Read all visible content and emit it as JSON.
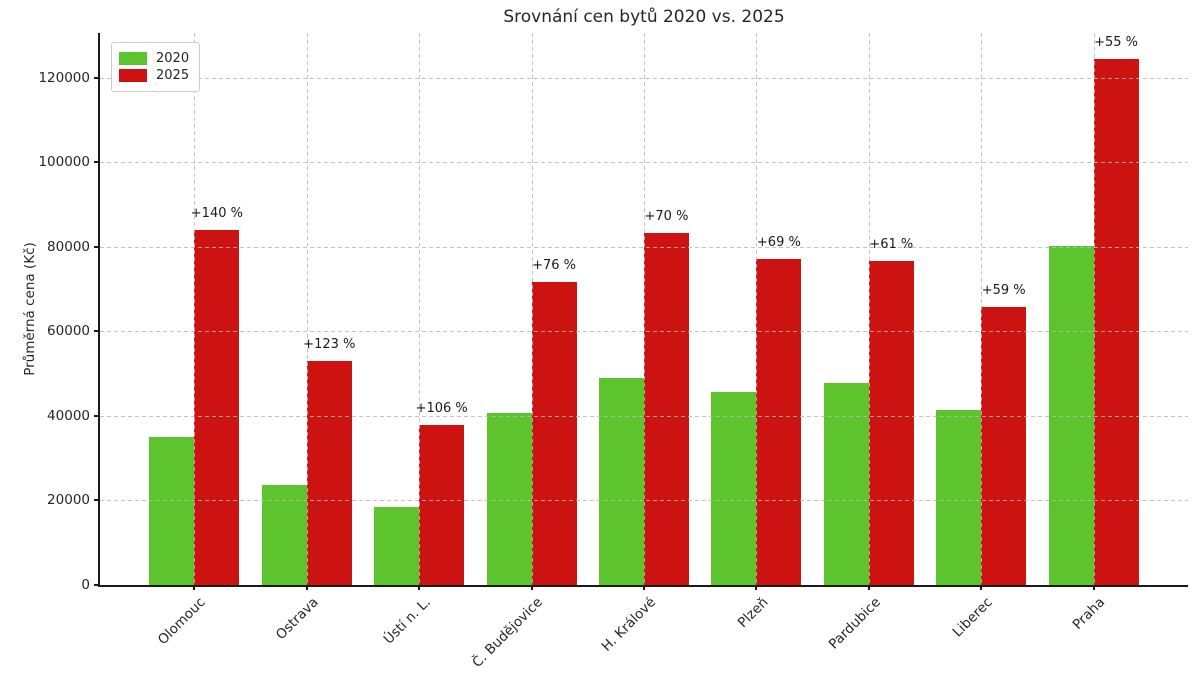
{
  "chart_data": {
    "type": "bar",
    "title": "Srovnání cen bytů 2020 vs. 2025",
    "ylabel": "Průměrná cena (Kč)",
    "xlabel": "",
    "categories": [
      "Olomouc",
      "Ostrava",
      "Ústí n. L.",
      "Č. Budějovice",
      "H. Králové",
      "Plzeň",
      "Pardubice",
      "Liberec",
      "Praha"
    ],
    "series": [
      {
        "name": "2020",
        "color": "#5ec42e",
        "values": [
          35000,
          23700,
          18400,
          40700,
          49000,
          45600,
          47700,
          41500,
          80300
        ]
      },
      {
        "name": "2025",
        "color": "#cd1212",
        "values": [
          84000,
          52900,
          37900,
          71600,
          83300,
          77100,
          76800,
          65900,
          124400
        ]
      }
    ],
    "annotations": [
      "+140 %",
      "+123 %",
      "+106 %",
      "+76 %",
      "+70 %",
      "+69 %",
      "+61 %",
      "+59 %",
      "+55 %"
    ],
    "yticks": [
      0,
      20000,
      40000,
      60000,
      80000,
      100000,
      120000
    ],
    "ylim": [
      0,
      130650
    ],
    "xlim": [
      -0.84,
      8.84
    ],
    "bar_width": 0.4,
    "grid": "dashed-both-axes",
    "legend_position": "upper-left"
  }
}
